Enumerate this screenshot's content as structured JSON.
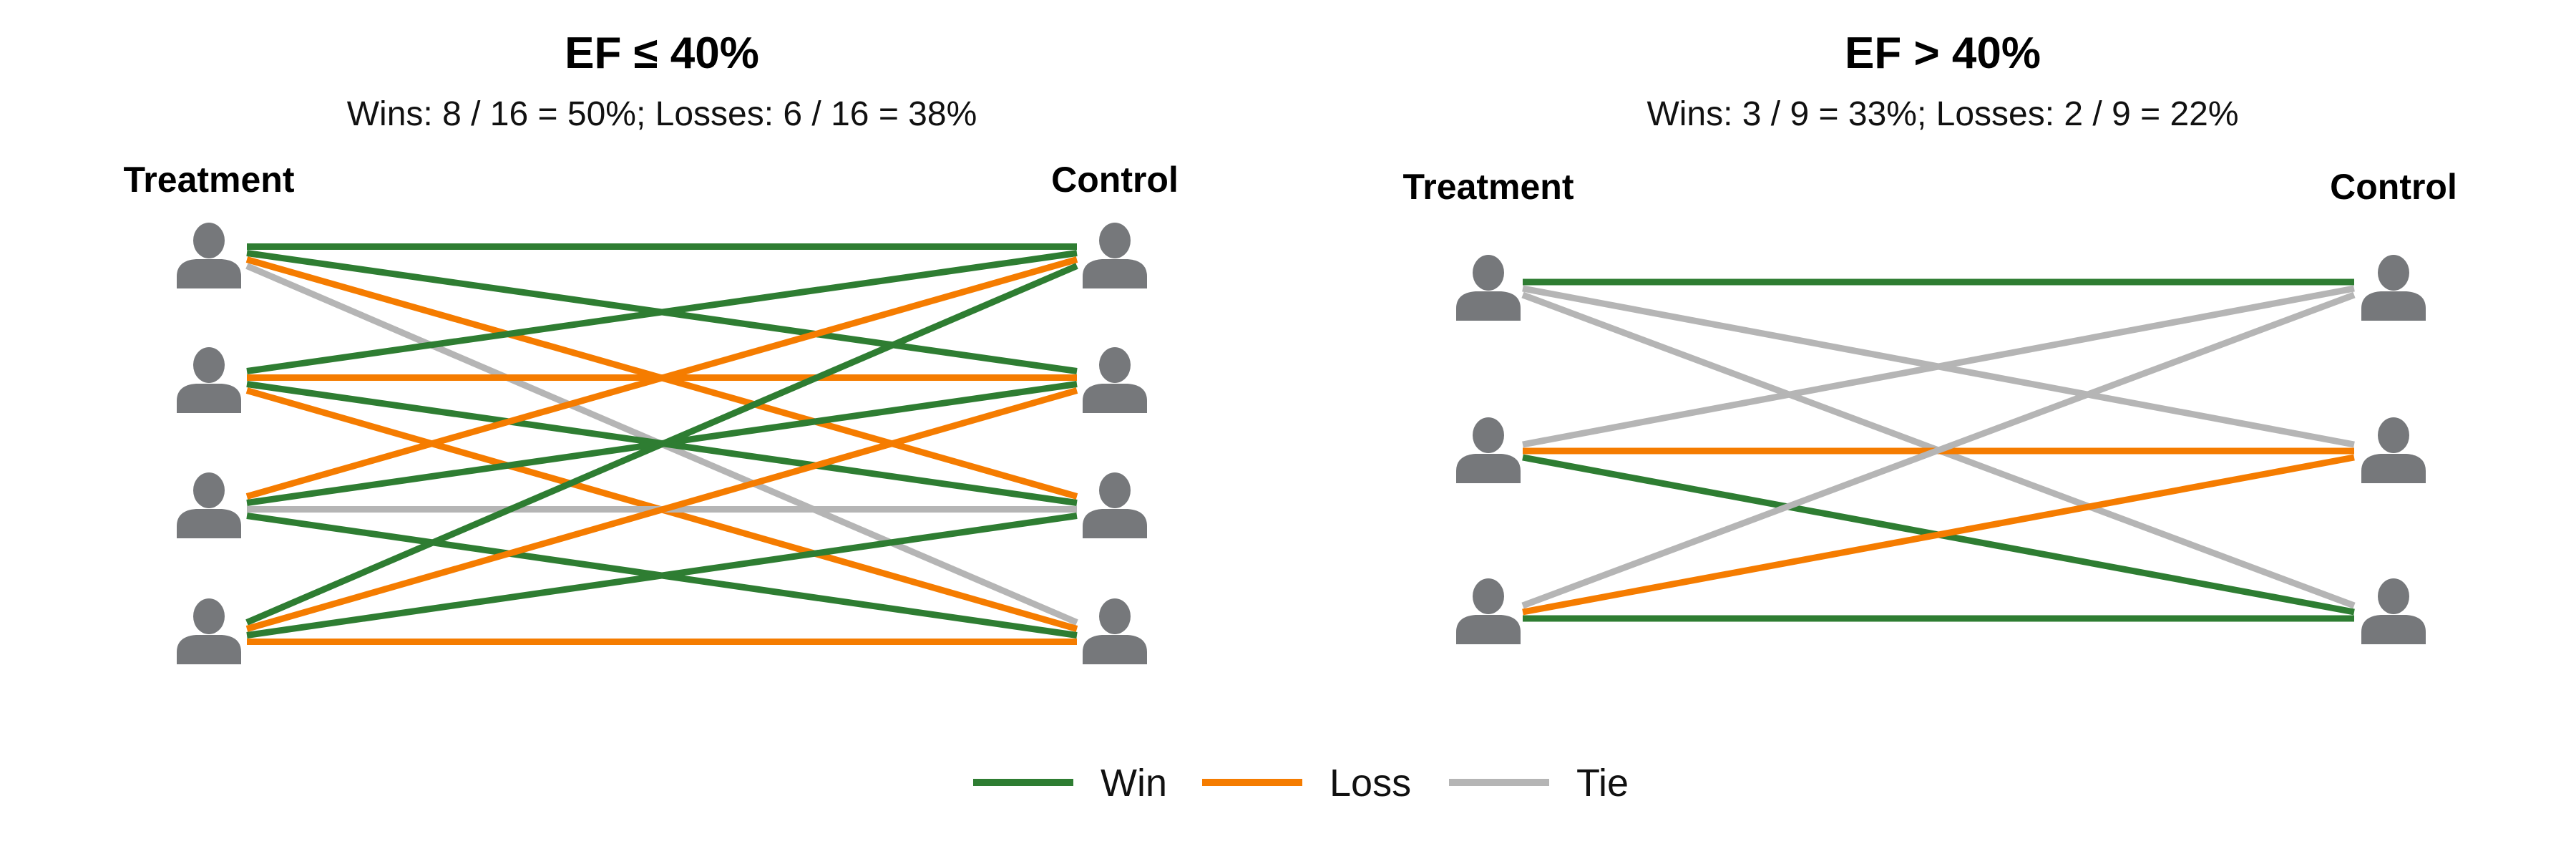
{
  "colors": {
    "win": "#2e7d32",
    "loss": "#f57c00",
    "tie": "#b5b5b5",
    "person": "#76787b"
  },
  "panels": [
    {
      "title": "EF ≤ 40%",
      "subtitle": "Wins: 8 / 16 = 50%; Losses: 6 / 16 = 38%",
      "left_label": "Treatment",
      "right_label": "Control",
      "n_treatment": 4,
      "n_control": 4,
      "pairs": [
        {
          "t": 1,
          "c": 1,
          "result": "Win"
        },
        {
          "t": 1,
          "c": 2,
          "result": "Win"
        },
        {
          "t": 1,
          "c": 3,
          "result": "Loss"
        },
        {
          "t": 1,
          "c": 4,
          "result": "Tie"
        },
        {
          "t": 2,
          "c": 1,
          "result": "Win"
        },
        {
          "t": 2,
          "c": 2,
          "result": "Loss"
        },
        {
          "t": 2,
          "c": 3,
          "result": "Win"
        },
        {
          "t": 2,
          "c": 4,
          "result": "Loss"
        },
        {
          "t": 3,
          "c": 1,
          "result": "Loss"
        },
        {
          "t": 3,
          "c": 2,
          "result": "Win"
        },
        {
          "t": 3,
          "c": 3,
          "result": "Tie"
        },
        {
          "t": 3,
          "c": 4,
          "result": "Win"
        },
        {
          "t": 4,
          "c": 1,
          "result": "Win"
        },
        {
          "t": 4,
          "c": 2,
          "result": "Loss"
        },
        {
          "t": 4,
          "c": 3,
          "result": "Win"
        },
        {
          "t": 4,
          "c": 4,
          "result": "Loss"
        }
      ]
    },
    {
      "title": "EF > 40%",
      "subtitle": "Wins: 3 / 9 = 33%; Losses: 2 / 9 = 22%",
      "left_label": "Treatment",
      "right_label": "Control",
      "n_treatment": 3,
      "n_control": 3,
      "pairs": [
        {
          "t": 1,
          "c": 1,
          "result": "Win"
        },
        {
          "t": 1,
          "c": 2,
          "result": "Tie"
        },
        {
          "t": 1,
          "c": 3,
          "result": "Tie"
        },
        {
          "t": 2,
          "c": 1,
          "result": "Tie"
        },
        {
          "t": 2,
          "c": 2,
          "result": "Loss"
        },
        {
          "t": 2,
          "c": 3,
          "result": "Win"
        },
        {
          "t": 3,
          "c": 1,
          "result": "Tie"
        },
        {
          "t": 3,
          "c": 2,
          "result": "Loss"
        },
        {
          "t": 3,
          "c": 3,
          "result": "Win"
        }
      ]
    }
  ],
  "legend": [
    {
      "key": "win",
      "label": "Win"
    },
    {
      "key": "loss",
      "label": "Loss"
    },
    {
      "key": "tie",
      "label": "Tie"
    }
  ]
}
